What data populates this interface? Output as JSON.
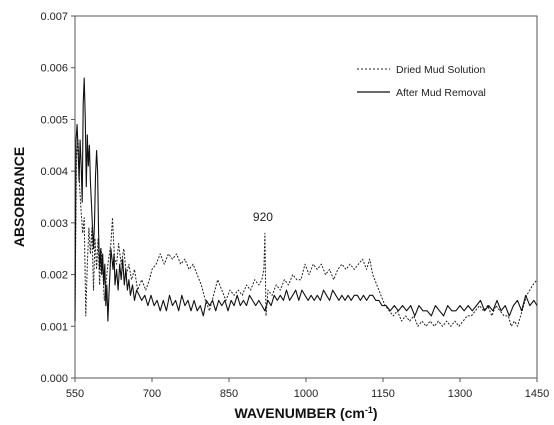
{
  "chart_data": {
    "type": "line",
    "title": "",
    "xlabel": "WAVENUMBER (cm-1)",
    "xlabel_main": "WAVENUMBER (cm",
    "xlabel_sup": "-1",
    "xlabel_end": ")",
    "ylabel": "ABSORBANCE",
    "xlim": [
      550,
      1450
    ],
    "ylim": [
      0,
      0.007
    ],
    "x_ticks": [
      "550",
      "700",
      "850",
      "1000",
      "1150",
      "1300",
      "1450"
    ],
    "y_ticks": [
      "0.000",
      "0.001",
      "0.002",
      "0.003",
      "0.004",
      "0.005",
      "0.006",
      "0.007"
    ],
    "grid": false,
    "legend_position": "top-right",
    "annotations": [
      {
        "text": "920",
        "x": 920,
        "y": 0.0028
      }
    ],
    "series": [
      {
        "name": "Dried Mud Solution",
        "style": "dotted",
        "color": "#222222",
        "points": [
          [
            550,
            0.0012
          ],
          [
            553,
            0.0043
          ],
          [
            556,
            0.0046
          ],
          [
            559,
            0.0037
          ],
          [
            562,
            0.0032
          ],
          [
            565,
            0.0028
          ],
          [
            568,
            0.0031
          ],
          [
            571,
            0.0012
          ],
          [
            574,
            0.0022
          ],
          [
            577,
            0.0029
          ],
          [
            580,
            0.0024
          ],
          [
            583,
            0.0029
          ],
          [
            586,
            0.0017
          ],
          [
            589,
            0.0027
          ],
          [
            592,
            0.0021
          ],
          [
            595,
            0.0027
          ],
          [
            598,
            0.0018
          ],
          [
            601,
            0.0025
          ],
          [
            604,
            0.0021
          ],
          [
            607,
            0.0015
          ],
          [
            611,
            0.0019
          ],
          [
            614,
            0.0022
          ],
          [
            617,
            0.0024
          ],
          [
            620,
            0.0026
          ],
          [
            623,
            0.0031
          ],
          [
            627,
            0.0023
          ],
          [
            631,
            0.0022
          ],
          [
            635,
            0.0026
          ],
          [
            640,
            0.0022
          ],
          [
            645,
            0.0025
          ],
          [
            650,
            0.002
          ],
          [
            655,
            0.0022
          ],
          [
            660,
            0.0019
          ],
          [
            666,
            0.0021
          ],
          [
            672,
            0.0017
          ],
          [
            680,
            0.0019
          ],
          [
            688,
            0.0017
          ],
          [
            695,
            0.0019
          ],
          [
            700,
            0.0021
          ],
          [
            708,
            0.0022
          ],
          [
            716,
            0.0024
          ],
          [
            724,
            0.0022
          ],
          [
            732,
            0.0024
          ],
          [
            740,
            0.0023
          ],
          [
            748,
            0.0024
          ],
          [
            756,
            0.0022
          ],
          [
            764,
            0.0023
          ],
          [
            772,
            0.0021
          ],
          [
            780,
            0.0022
          ],
          [
            788,
            0.002
          ],
          [
            796,
            0.0018
          ],
          [
            804,
            0.0015
          ],
          [
            812,
            0.0013
          ],
          [
            820,
            0.0016
          ],
          [
            828,
            0.0019
          ],
          [
            836,
            0.0017
          ],
          [
            844,
            0.0015
          ],
          [
            852,
            0.0017
          ],
          [
            860,
            0.0016
          ],
          [
            868,
            0.0017
          ],
          [
            876,
            0.0016
          ],
          [
            884,
            0.0018
          ],
          [
            892,
            0.0017
          ],
          [
            900,
            0.0019
          ],
          [
            908,
            0.0018
          ],
          [
            914,
            0.0019
          ],
          [
            918,
            0.0021
          ],
          [
            920,
            0.0028
          ],
          [
            922,
            0.0012
          ],
          [
            926,
            0.0017
          ],
          [
            934,
            0.0016
          ],
          [
            942,
            0.0018
          ],
          [
            950,
            0.0017
          ],
          [
            958,
            0.0019
          ],
          [
            966,
            0.0018
          ],
          [
            974,
            0.002
          ],
          [
            982,
            0.0019
          ],
          [
            990,
            0.0019
          ],
          [
            998,
            0.0022
          ],
          [
            1006,
            0.002
          ],
          [
            1014,
            0.0022
          ],
          [
            1022,
            0.0021
          ],
          [
            1030,
            0.0022
          ],
          [
            1038,
            0.002
          ],
          [
            1046,
            0.0021
          ],
          [
            1054,
            0.0019
          ],
          [
            1062,
            0.0021
          ],
          [
            1070,
            0.0022
          ],
          [
            1078,
            0.0021
          ],
          [
            1086,
            0.0022
          ],
          [
            1094,
            0.0021
          ],
          [
            1102,
            0.0022
          ],
          [
            1110,
            0.0023
          ],
          [
            1118,
            0.0021
          ],
          [
            1124,
            0.0023
          ],
          [
            1130,
            0.002
          ],
          [
            1138,
            0.0018
          ],
          [
            1146,
            0.0016
          ],
          [
            1154,
            0.0014
          ],
          [
            1162,
            0.0013
          ],
          [
            1170,
            0.0012
          ],
          [
            1178,
            0.0013
          ],
          [
            1186,
            0.0011
          ],
          [
            1194,
            0.0012
          ],
          [
            1202,
            0.0011
          ],
          [
            1210,
            0.0012
          ],
          [
            1218,
            0.001
          ],
          [
            1226,
            0.0011
          ],
          [
            1234,
            0.001
          ],
          [
            1242,
            0.0011
          ],
          [
            1250,
            0.001
          ],
          [
            1258,
            0.0011
          ],
          [
            1266,
            0.001
          ],
          [
            1274,
            0.0011
          ],
          [
            1282,
            0.001
          ],
          [
            1290,
            0.0011
          ],
          [
            1298,
            0.001
          ],
          [
            1306,
            0.0011
          ],
          [
            1314,
            0.0012
          ],
          [
            1322,
            0.0012
          ],
          [
            1330,
            0.0013
          ],
          [
            1338,
            0.0014
          ],
          [
            1346,
            0.0013
          ],
          [
            1354,
            0.0014
          ],
          [
            1362,
            0.0012
          ],
          [
            1370,
            0.0014
          ],
          [
            1378,
            0.0013
          ],
          [
            1386,
            0.0012
          ],
          [
            1394,
            0.0012
          ],
          [
            1400,
            0.001
          ],
          [
            1406,
            0.0011
          ],
          [
            1412,
            0.001
          ],
          [
            1418,
            0.0012
          ],
          [
            1424,
            0.0014
          ],
          [
            1430,
            0.0016
          ],
          [
            1436,
            0.0017
          ],
          [
            1442,
            0.0018
          ],
          [
            1450,
            0.0019
          ]
        ]
      },
      {
        "name": "After Mud Removal",
        "style": "solid",
        "color": "#111111",
        "points": [
          [
            550,
            0.0011
          ],
          [
            552,
            0.0046
          ],
          [
            554,
            0.0049
          ],
          [
            556,
            0.0044
          ],
          [
            558,
            0.0038
          ],
          [
            560,
            0.0046
          ],
          [
            562,
            0.0041
          ],
          [
            564,
            0.0034
          ],
          [
            566,
            0.0053
          ],
          [
            568,
            0.0058
          ],
          [
            570,
            0.005
          ],
          [
            572,
            0.0037
          ],
          [
            574,
            0.0047
          ],
          [
            576,
            0.0041
          ],
          [
            578,
            0.0045
          ],
          [
            580,
            0.0038
          ],
          [
            582,
            0.0034
          ],
          [
            584,
            0.0029
          ],
          [
            586,
            0.0025
          ],
          [
            588,
            0.003
          ],
          [
            590,
            0.0039
          ],
          [
            592,
            0.0044
          ],
          [
            594,
            0.004
          ],
          [
            596,
            0.0028
          ],
          [
            598,
            0.0021
          ],
          [
            600,
            0.0025
          ],
          [
            602,
            0.002
          ],
          [
            604,
            0.0024
          ],
          [
            606,
            0.0018
          ],
          [
            608,
            0.0022
          ],
          [
            610,
            0.0014
          ],
          [
            612,
            0.0018
          ],
          [
            614,
            0.0011
          ],
          [
            616,
            0.0016
          ],
          [
            618,
            0.002
          ],
          [
            620,
            0.0025
          ],
          [
            622,
            0.0023
          ],
          [
            624,
            0.0021
          ],
          [
            626,
            0.0024
          ],
          [
            628,
            0.0018
          ],
          [
            631,
            0.0021
          ],
          [
            634,
            0.0017
          ],
          [
            637,
            0.0022
          ],
          [
            640,
            0.0019
          ],
          [
            643,
            0.0023
          ],
          [
            646,
            0.0018
          ],
          [
            649,
            0.0021
          ],
          [
            652,
            0.0017
          ],
          [
            655,
            0.0019
          ],
          [
            658,
            0.0016
          ],
          [
            662,
            0.0018
          ],
          [
            666,
            0.0015
          ],
          [
            670,
            0.0017
          ],
          [
            675,
            0.0016
          ],
          [
            680,
            0.0015
          ],
          [
            686,
            0.0016
          ],
          [
            692,
            0.0014
          ],
          [
            698,
            0.0016
          ],
          [
            704,
            0.0014
          ],
          [
            710,
            0.0015
          ],
          [
            716,
            0.0013
          ],
          [
            722,
            0.0015
          ],
          [
            728,
            0.0013
          ],
          [
            734,
            0.0016
          ],
          [
            740,
            0.0014
          ],
          [
            746,
            0.0015
          ],
          [
            752,
            0.0013
          ],
          [
            758,
            0.0016
          ],
          [
            764,
            0.0014
          ],
          [
            770,
            0.0015
          ],
          [
            776,
            0.0013
          ],
          [
            782,
            0.0015
          ],
          [
            788,
            0.0013
          ],
          [
            794,
            0.0014
          ],
          [
            800,
            0.0012
          ],
          [
            806,
            0.0015
          ],
          [
            812,
            0.0014
          ],
          [
            818,
            0.0015
          ],
          [
            824,
            0.0013
          ],
          [
            830,
            0.0015
          ],
          [
            836,
            0.0014
          ],
          [
            842,
            0.0015
          ],
          [
            848,
            0.0013
          ],
          [
            854,
            0.0015
          ],
          [
            860,
            0.0014
          ],
          [
            866,
            0.0016
          ],
          [
            872,
            0.0014
          ],
          [
            878,
            0.0015
          ],
          [
            884,
            0.0014
          ],
          [
            890,
            0.0016
          ],
          [
            896,
            0.0015
          ],
          [
            902,
            0.0014
          ],
          [
            908,
            0.0015
          ],
          [
            914,
            0.0014
          ],
          [
            920,
            0.0013
          ],
          [
            926,
            0.0015
          ],
          [
            932,
            0.0014
          ],
          [
            938,
            0.0016
          ],
          [
            944,
            0.0015
          ],
          [
            950,
            0.0016
          ],
          [
            956,
            0.0015
          ],
          [
            962,
            0.0017
          ],
          [
            968,
            0.0015
          ],
          [
            974,
            0.0016
          ],
          [
            980,
            0.0017
          ],
          [
            986,
            0.0015
          ],
          [
            992,
            0.0017
          ],
          [
            998,
            0.0016
          ],
          [
            1004,
            0.0015
          ],
          [
            1010,
            0.0016
          ],
          [
            1016,
            0.0015
          ],
          [
            1022,
            0.0016
          ],
          [
            1028,
            0.0015
          ],
          [
            1034,
            0.0017
          ],
          [
            1040,
            0.0016
          ],
          [
            1046,
            0.0015
          ],
          [
            1052,
            0.0017
          ],
          [
            1058,
            0.0016
          ],
          [
            1064,
            0.0015
          ],
          [
            1070,
            0.0016
          ],
          [
            1076,
            0.0015
          ],
          [
            1082,
            0.0016
          ],
          [
            1088,
            0.0015
          ],
          [
            1094,
            0.0016
          ],
          [
            1100,
            0.0016
          ],
          [
            1106,
            0.0015
          ],
          [
            1112,
            0.0016
          ],
          [
            1118,
            0.0015
          ],
          [
            1124,
            0.0016
          ],
          [
            1130,
            0.0016
          ],
          [
            1136,
            0.0015
          ],
          [
            1142,
            0.0015
          ],
          [
            1148,
            0.0014
          ],
          [
            1156,
            0.0014
          ],
          [
            1164,
            0.0013
          ],
          [
            1172,
            0.0014
          ],
          [
            1180,
            0.0013
          ],
          [
            1188,
            0.0014
          ],
          [
            1196,
            0.0013
          ],
          [
            1204,
            0.0014
          ],
          [
            1212,
            0.0012
          ],
          [
            1220,
            0.0014
          ],
          [
            1228,
            0.0013
          ],
          [
            1236,
            0.0013
          ],
          [
            1244,
            0.0012
          ],
          [
            1252,
            0.0014
          ],
          [
            1260,
            0.0013
          ],
          [
            1268,
            0.0012
          ],
          [
            1276,
            0.0014
          ],
          [
            1284,
            0.0013
          ],
          [
            1292,
            0.0013
          ],
          [
            1300,
            0.0014
          ],
          [
            1308,
            0.0013
          ],
          [
            1316,
            0.0014
          ],
          [
            1324,
            0.0013
          ],
          [
            1332,
            0.0014
          ],
          [
            1340,
            0.0015
          ],
          [
            1348,
            0.0013
          ],
          [
            1356,
            0.0014
          ],
          [
            1364,
            0.0013
          ],
          [
            1372,
            0.0015
          ],
          [
            1380,
            0.0013
          ],
          [
            1388,
            0.0014
          ],
          [
            1396,
            0.0012
          ],
          [
            1404,
            0.0014
          ],
          [
            1412,
            0.0015
          ],
          [
            1420,
            0.0013
          ],
          [
            1428,
            0.0016
          ],
          [
            1436,
            0.0014
          ],
          [
            1444,
            0.0015
          ],
          [
            1450,
            0.0014
          ]
        ]
      }
    ]
  }
}
